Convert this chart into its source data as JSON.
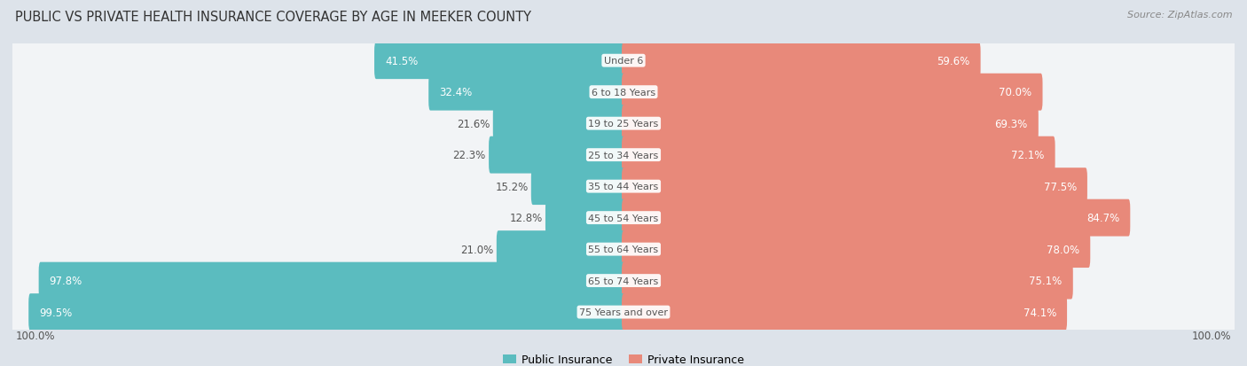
{
  "title": "PUBLIC VS PRIVATE HEALTH INSURANCE COVERAGE BY AGE IN MEEKER COUNTY",
  "source": "Source: ZipAtlas.com",
  "categories": [
    "Under 6",
    "6 to 18 Years",
    "19 to 25 Years",
    "25 to 34 Years",
    "35 to 44 Years",
    "45 to 54 Years",
    "55 to 64 Years",
    "65 to 74 Years",
    "75 Years and over"
  ],
  "public_values": [
    41.5,
    32.4,
    21.6,
    22.3,
    15.2,
    12.8,
    21.0,
    97.8,
    99.5
  ],
  "private_values": [
    59.6,
    70.0,
    69.3,
    72.1,
    77.5,
    84.7,
    78.0,
    75.1,
    74.1
  ],
  "public_color": "#5bbcbf",
  "private_color": "#e8897a",
  "background_color": "#dde3ea",
  "row_light_color": "#f2f4f6",
  "row_border_color": "#c8cdd4",
  "label_color_dark": "#555555",
  "label_color_white": "#ffffff",
  "title_fontsize": 10.5,
  "source_fontsize": 8,
  "label_fontsize": 8.5,
  "category_fontsize": 8,
  "legend_fontsize": 9,
  "axis_label_fontsize": 8.5,
  "max_value": 100.0,
  "white_threshold_pub": 30,
  "white_threshold_priv": 30
}
